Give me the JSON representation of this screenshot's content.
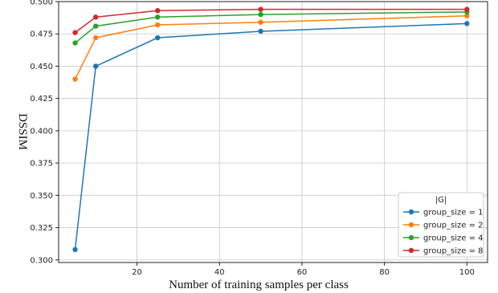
{
  "chart_data": {
    "type": "line",
    "xlabel": "Number of training samples per class",
    "ylabel": "DSSIM",
    "x": [
      5,
      10,
      25,
      50,
      100
    ],
    "xlim": [
      1,
      105
    ],
    "ylim": [
      0.298,
      0.5
    ],
    "xticks": [
      20,
      40,
      60,
      80,
      100
    ],
    "yticks": [
      0.3,
      0.325,
      0.35,
      0.375,
      0.4,
      0.425,
      0.45,
      0.475,
      0.5
    ],
    "ytick_labels": [
      "0.300",
      "0.325",
      "0.350",
      "0.375",
      "0.400",
      "0.425",
      "0.450",
      "0.475",
      "0.500"
    ],
    "grid": true,
    "legend": {
      "title": "|G|",
      "placement": "bottom-right"
    },
    "series": [
      {
        "name": "group_size = 1",
        "color": "#1f77b4",
        "values": [
          0.308,
          0.45,
          0.472,
          0.477,
          0.483
        ]
      },
      {
        "name": "group_size = 2",
        "color": "#ff7f0e",
        "values": [
          0.44,
          0.472,
          0.482,
          0.484,
          0.489
        ]
      },
      {
        "name": "group_size = 4",
        "color": "#2ca02c",
        "values": [
          0.468,
          0.481,
          0.488,
          0.49,
          0.492
        ]
      },
      {
        "name": "group_size = 8",
        "color": "#d62728",
        "values": [
          0.476,
          0.488,
          0.493,
          0.494,
          0.494
        ]
      }
    ]
  }
}
